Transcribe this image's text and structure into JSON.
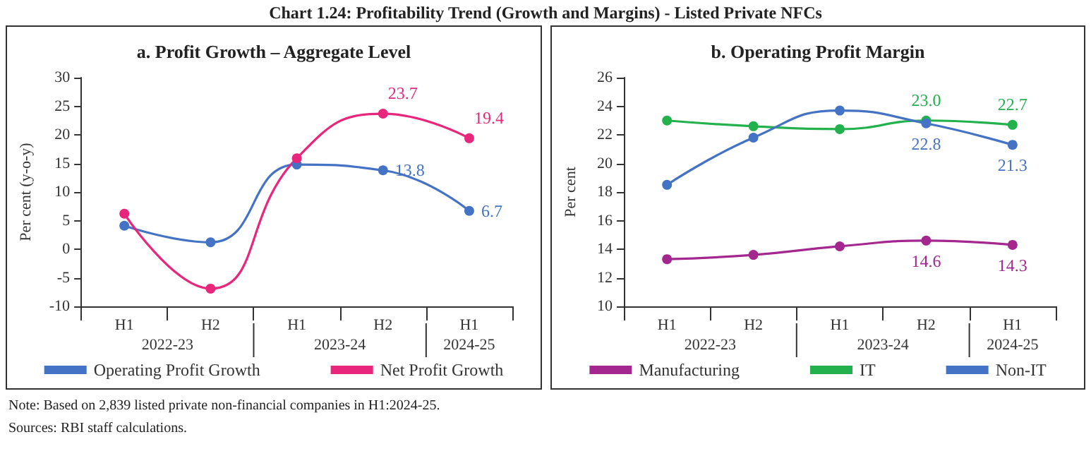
{
  "chart_data": [
    {
      "type": "line",
      "title": "a. Profit Growth – Aggregate Level",
      "ylabel": "Per cent (y-o-y)",
      "categories": [
        "H1",
        "H2",
        "H1",
        "H2",
        "H1"
      ],
      "annotations": [
        "Chart 1.24: Profitability Trend (Growth and Margins) - Listed Private NFCs",
        "2022-23",
        "2023-24",
        "2024-25",
        "Note: Based on 2,839 listed private non-financial companies in H1:2024-25.",
        "Sources: RBI staff calculations."
      ],
      "ylim": [
        -10,
        30
      ],
      "yticks": [
        -10,
        -5,
        0,
        5,
        10,
        15,
        20,
        25,
        30
      ],
      "grid": false,
      "legend": "bottom",
      "marker": "circle",
      "line_style": "solid",
      "series": [
        {
          "name": "Operating Profit Growth",
          "color": "#4472c4",
          "values": [
            4.1,
            1.2,
            14.8,
            13.8,
            6.7
          ],
          "value_labels": [
            null,
            null,
            null,
            "13.8",
            "6.7"
          ]
        },
        {
          "name": "Net Profit Growth",
          "color": "#e8267c",
          "values": [
            6.2,
            -6.9,
            15.9,
            23.7,
            19.4
          ],
          "value_labels": [
            null,
            null,
            null,
            "23.7",
            "19.4"
          ]
        }
      ]
    },
    {
      "type": "line",
      "title": "b. Operating Profit Margin",
      "ylabel": "Per cent",
      "categories": [
        "H1",
        "H2",
        "H1",
        "H2",
        "H1"
      ],
      "annotations": [
        "2022-23",
        "2023-24",
        "2024-25"
      ],
      "ylim": [
        10,
        26
      ],
      "yticks": [
        10,
        12,
        14,
        16,
        18,
        20,
        22,
        24,
        26
      ],
      "grid": false,
      "legend": "bottom",
      "marker": "circle",
      "line_style": "solid",
      "series": [
        {
          "name": "Manufacturing",
          "color": "#a3278f",
          "values": [
            13.3,
            13.6,
            14.2,
            14.6,
            14.3
          ],
          "value_labels": [
            null,
            null,
            null,
            "14.6",
            "14.3"
          ]
        },
        {
          "name": "IT",
          "color": "#22b14c",
          "values": [
            23.0,
            22.6,
            22.4,
            23.0,
            22.7
          ],
          "value_labels": [
            null,
            null,
            null,
            "23.0",
            "22.7"
          ]
        },
        {
          "name": "Non-IT",
          "color": "#4472c4",
          "values": [
            18.5,
            21.8,
            23.7,
            22.8,
            21.3
          ],
          "value_labels": [
            null,
            null,
            null,
            "22.8",
            "21.3"
          ]
        }
      ]
    }
  ]
}
